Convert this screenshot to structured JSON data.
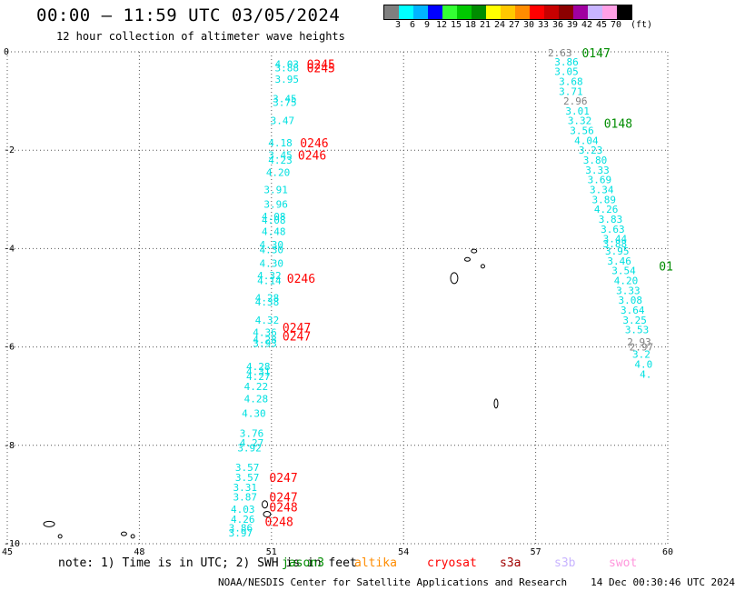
{
  "header": {
    "title": "00:00 — 11:59 UTC 03/05/2024",
    "subtitle": "12 hour collection of altimeter wave heights"
  },
  "colorbar": {
    "unit_label": "(ft)",
    "bins": [
      {
        "label": "3",
        "color": "#7f7f7f"
      },
      {
        "label": "6",
        "color": "#00ffff"
      },
      {
        "label": "9",
        "color": "#00b4ff"
      },
      {
        "label": "12",
        "color": "#0000ff"
      },
      {
        "label": "15",
        "color": "#33ff33"
      },
      {
        "label": "18",
        "color": "#00c800"
      },
      {
        "label": "21",
        "color": "#008c00"
      },
      {
        "label": "24",
        "color": "#ffff00"
      },
      {
        "label": "27",
        "color": "#ffc800"
      },
      {
        "label": "30",
        "color": "#ff8c00"
      },
      {
        "label": "33",
        "color": "#ff0000"
      },
      {
        "label": "36",
        "color": "#c80000"
      },
      {
        "label": "39",
        "color": "#8c0000"
      },
      {
        "label": "42",
        "color": "#a000a0"
      },
      {
        "label": "45",
        "color": "#c8b4ff"
      },
      {
        "label": "70",
        "color": "#ffa0e6"
      },
      {
        "label": "",
        "color": "#000000"
      }
    ]
  },
  "note": {
    "text": "note: 1) Time is in UTC; 2) SWH is in feet",
    "satellites": [
      {
        "name": "jason3",
        "color": "#008c00"
      },
      {
        "name": "altika",
        "color": "#ff8c00"
      },
      {
        "name": "cryosat",
        "color": "#ff0000"
      },
      {
        "name": "s3a",
        "color": "#a00000"
      },
      {
        "name": "s3b",
        "color": "#c8b4ff"
      },
      {
        "name": "swot",
        "color": "#ff96dc"
      }
    ]
  },
  "footer": {
    "credit": "NOAA/NESDIS Center for Satellite Applications and Research",
    "timestamp": "14 Dec 00:30:46 UTC 2024"
  },
  "chart_data": {
    "type": "scatter",
    "xlim": [
      45,
      60
    ],
    "ylim": [
      -10,
      0
    ],
    "x_ticks": [
      45,
      48,
      51,
      54,
      57,
      60
    ],
    "y_ticks": [
      0,
      -2,
      -4,
      -6,
      -8,
      -10
    ],
    "grid": true,
    "series": [
      {
        "color": "#00e0e0",
        "points": [
          {
            "x": 51.35,
            "y": -0.25,
            "v": "4.03"
          },
          {
            "x": 51.35,
            "y": -0.32,
            "v": "3.88"
          },
          {
            "x": 51.35,
            "y": -0.55,
            "v": "3.95"
          },
          {
            "x": 51.3,
            "y": -0.95,
            "v": "3.45"
          },
          {
            "x": 51.3,
            "y": -1.03,
            "v": "3.75"
          },
          {
            "x": 51.25,
            "y": -1.4,
            "v": "3.47"
          },
          {
            "x": 51.2,
            "y": -1.85,
            "v": "4.18"
          },
          {
            "x": 51.2,
            "y": -2.1,
            "v": "3.45"
          },
          {
            "x": 51.2,
            "y": -2.2,
            "v": "4.23"
          },
          {
            "x": 51.15,
            "y": -2.45,
            "v": "4.20"
          },
          {
            "x": 51.1,
            "y": -2.8,
            "v": "3.91"
          },
          {
            "x": 51.1,
            "y": -3.1,
            "v": "3.96"
          },
          {
            "x": 51.05,
            "y": -3.35,
            "v": "4.08"
          },
          {
            "x": 51.05,
            "y": -3.42,
            "v": "4.08"
          },
          {
            "x": 51.05,
            "y": -3.65,
            "v": "4.48"
          },
          {
            "x": 51.0,
            "y": -3.92,
            "v": "4.30"
          },
          {
            "x": 51.0,
            "y": -4.02,
            "v": "4.30"
          },
          {
            "x": 51.0,
            "y": -4.3,
            "v": "4.30"
          },
          {
            "x": 50.95,
            "y": -4.55,
            "v": "4.32"
          },
          {
            "x": 50.95,
            "y": -4.65,
            "v": "4.14"
          },
          {
            "x": 50.9,
            "y": -5.0,
            "v": "4.28"
          },
          {
            "x": 50.9,
            "y": -5.08,
            "v": "4.38"
          },
          {
            "x": 50.9,
            "y": -5.45,
            "v": "4.32"
          },
          {
            "x": 50.85,
            "y": -5.7,
            "v": "4.36"
          },
          {
            "x": 50.85,
            "y": -5.85,
            "v": "4.28"
          },
          {
            "x": 50.85,
            "y": -5.92,
            "v": "3.93"
          },
          {
            "x": 50.7,
            "y": -6.4,
            "v": "4.28"
          },
          {
            "x": 50.7,
            "y": -6.5,
            "v": "4.31"
          },
          {
            "x": 50.7,
            "y": -6.6,
            "v": "4.27"
          },
          {
            "x": 50.65,
            "y": -6.8,
            "v": "4.22"
          },
          {
            "x": 50.65,
            "y": -7.05,
            "v": "4.28"
          },
          {
            "x": 50.6,
            "y": -7.35,
            "v": "4.30"
          },
          {
            "x": 50.55,
            "y": -7.75,
            "v": "3.76"
          },
          {
            "x": 50.55,
            "y": -7.95,
            "v": "4.27"
          },
          {
            "x": 50.5,
            "y": -8.05,
            "v": "3.92"
          },
          {
            "x": 50.45,
            "y": -8.45,
            "v": "3.57"
          },
          {
            "x": 50.45,
            "y": -8.65,
            "v": "3.57"
          },
          {
            "x": 50.4,
            "y": -8.85,
            "v": "3.31"
          },
          {
            "x": 50.4,
            "y": -9.05,
            "v": "3.87"
          },
          {
            "x": 50.35,
            "y": -9.3,
            "v": "4.03"
          },
          {
            "x": 50.35,
            "y": -9.5,
            "v": "4.26"
          },
          {
            "x": 50.3,
            "y": -9.68,
            "v": "3.86"
          },
          {
            "x": 50.3,
            "y": -9.78,
            "v": "3.97"
          },
          {
            "x": 57.7,
            "y": -0.2,
            "v": "3.86"
          },
          {
            "x": 57.7,
            "y": -0.4,
            "v": "3.05"
          },
          {
            "x": 57.8,
            "y": -0.6,
            "v": "3.68"
          },
          {
            "x": 57.8,
            "y": -0.8,
            "v": "3.71"
          },
          {
            "x": 57.95,
            "y": -1.2,
            "v": "3.01"
          },
          {
            "x": 58.0,
            "y": -1.4,
            "v": "3.32"
          },
          {
            "x": 58.05,
            "y": -1.6,
            "v": "3.56"
          },
          {
            "x": 58.15,
            "y": -1.8,
            "v": "4.04"
          },
          {
            "x": 58.25,
            "y": -2.0,
            "v": "3.23"
          },
          {
            "x": 58.35,
            "y": -2.2,
            "v": "3.80"
          },
          {
            "x": 58.4,
            "y": -2.4,
            "v": "3.33"
          },
          {
            "x": 58.45,
            "y": -2.6,
            "v": "3.69"
          },
          {
            "x": 58.5,
            "y": -2.8,
            "v": "3.34"
          },
          {
            "x": 58.55,
            "y": -3.0,
            "v": "3.89"
          },
          {
            "x": 58.6,
            "y": -3.2,
            "v": "4.26"
          },
          {
            "x": 58.7,
            "y": -3.4,
            "v": "3.83"
          },
          {
            "x": 58.75,
            "y": -3.6,
            "v": "3.63"
          },
          {
            "x": 58.8,
            "y": -3.8,
            "v": "3.44"
          },
          {
            "x": 58.8,
            "y": -3.9,
            "v": "3.88"
          },
          {
            "x": 58.85,
            "y": -4.05,
            "v": "3.95"
          },
          {
            "x": 58.9,
            "y": -4.25,
            "v": "3.46"
          },
          {
            "x": 59.0,
            "y": -4.45,
            "v": "3.54"
          },
          {
            "x": 59.05,
            "y": -4.65,
            "v": "4.20"
          },
          {
            "x": 59.1,
            "y": -4.85,
            "v": "3.33"
          },
          {
            "x": 59.15,
            "y": -5.05,
            "v": "3.08"
          },
          {
            "x": 59.2,
            "y": -5.25,
            "v": "3.64"
          },
          {
            "x": 59.25,
            "y": -5.45,
            "v": "3.25"
          },
          {
            "x": 59.3,
            "y": -5.65,
            "v": "3.53"
          },
          {
            "x": 59.4,
            "y": -6.15,
            "v": "3.2"
          },
          {
            "x": 59.45,
            "y": -6.35,
            "v": "4.0"
          },
          {
            "x": 59.5,
            "y": -6.55,
            "v": "4."
          }
        ]
      },
      {
        "color": "#808080",
        "points": [
          {
            "x": 57.55,
            "y": -0.02,
            "v": "2.63"
          },
          {
            "x": 57.9,
            "y": -1.0,
            "v": "2.96"
          },
          {
            "x": 59.35,
            "y": -5.9,
            "v": "2.93"
          },
          {
            "x": 59.4,
            "y": -6.0,
            "v": "2.97"
          }
        ]
      }
    ],
    "track_labels": [
      {
        "x": 51.8,
        "y": -0.25,
        "text": "0245",
        "color": "#ff0000"
      },
      {
        "x": 51.8,
        "y": -0.32,
        "text": "0245",
        "color": "#ff0000"
      },
      {
        "x": 51.65,
        "y": -1.85,
        "text": "0246",
        "color": "#ff0000"
      },
      {
        "x": 51.6,
        "y": -2.1,
        "text": "0246",
        "color": "#ff0000"
      },
      {
        "x": 51.35,
        "y": -4.6,
        "text": "0246",
        "color": "#ff0000"
      },
      {
        "x": 51.25,
        "y": -5.6,
        "text": "0247",
        "color": "#ff0000"
      },
      {
        "x": 51.25,
        "y": -5.78,
        "text": "0247",
        "color": "#ff0000"
      },
      {
        "x": 50.95,
        "y": -8.65,
        "text": "0247",
        "color": "#ff0000"
      },
      {
        "x": 50.95,
        "y": -9.05,
        "text": "0247",
        "color": "#ff0000"
      },
      {
        "x": 50.95,
        "y": -9.25,
        "text": "0248",
        "color": "#ff0000"
      },
      {
        "x": 50.85,
        "y": -9.55,
        "text": "0248",
        "color": "#ff0000"
      },
      {
        "x": 58.05,
        "y": -0.02,
        "text": "0147",
        "color": "#008c00"
      },
      {
        "x": 58.55,
        "y": -1.45,
        "text": "0148",
        "color": "#008c00"
      },
      {
        "x": 59.8,
        "y": -4.35,
        "text": "01",
        "color": "#008c00"
      }
    ]
  }
}
